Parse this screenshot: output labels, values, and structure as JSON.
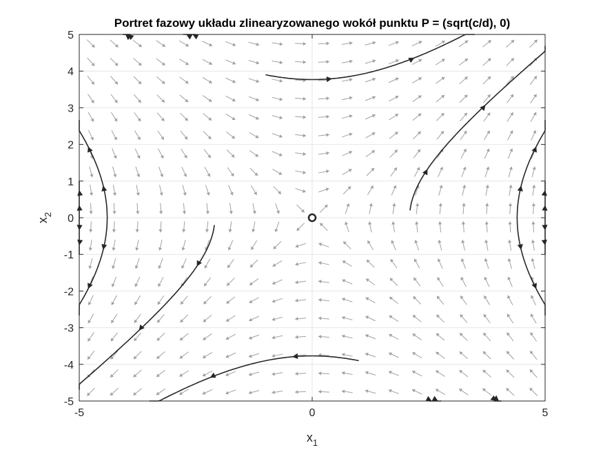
{
  "chart_data": {
    "type": "phase-portrait",
    "title": "Portret fazowy układu zlinearyzowanego wokół punktu P = (sqrt(c/d), 0)",
    "xlabel": {
      "base": "x",
      "sub": "1"
    },
    "ylabel": {
      "base": "x",
      "sub": "2"
    },
    "xlim": [
      -5,
      5
    ],
    "ylim": [
      -5,
      5
    ],
    "xticks": [
      -5,
      0,
      5
    ],
    "yticks": [
      -5,
      -4,
      -3,
      -2,
      -1,
      0,
      1,
      2,
      3,
      4,
      5
    ],
    "grid": true,
    "equilibrium": {
      "x": 0,
      "y": 0,
      "type": "saddle"
    },
    "vector_field": {
      "dx1": "x2",
      "dx2": "x1",
      "grid_step_x": 0.5,
      "grid_step_y": 0.5
    },
    "trajectories": [
      {
        "x0": -3.9,
        "y0": 5,
        "t_end": -2.6
      },
      {
        "x0": 2.1,
        "y0": 0.2,
        "t_end": 1.7
      },
      {
        "x0": 3.9,
        "y0": -5,
        "t_end": -2.6
      },
      {
        "x0": -2.1,
        "y0": -0.2,
        "t_end": 1.7
      },
      {
        "x0": -1.0,
        "y0": 3.9,
        "t_end": 2.2
      },
      {
        "x0": 1.0,
        "y0": -3.9,
        "t_end": 2.2
      },
      {
        "x0": -2.5,
        "y0": 5,
        "t_end": -1.6
      },
      {
        "x0": 2.5,
        "y0": -5,
        "t_end": -1.6
      },
      {
        "x0": -2.5,
        "y0": 5.2,
        "t_end": 1.4
      },
      {
        "x0": 2.5,
        "y0": -5.2,
        "t_end": 1.4
      },
      {
        "x0": -4.4,
        "y0": 0,
        "t_end": 0.85
      },
      {
        "x0": -4.4,
        "y0": 0,
        "t_end": -0.85
      },
      {
        "x0": 4.4,
        "y0": 0,
        "t_end": 0.85
      },
      {
        "x0": 4.4,
        "y0": 0,
        "t_end": -0.85
      },
      {
        "x0": -5.05,
        "y0": 0,
        "t_end": 0.35
      },
      {
        "x0": -5.05,
        "y0": 0,
        "t_end": -0.35
      },
      {
        "x0": 5.05,
        "y0": 0,
        "t_end": 0.35
      },
      {
        "x0": 5.05,
        "y0": 0,
        "t_end": -0.35
      }
    ],
    "colors": {
      "trajectory": "#262626",
      "field_arrow": "#a0a0a0",
      "grid": "#e6e6e6",
      "axes": "#262626"
    }
  }
}
